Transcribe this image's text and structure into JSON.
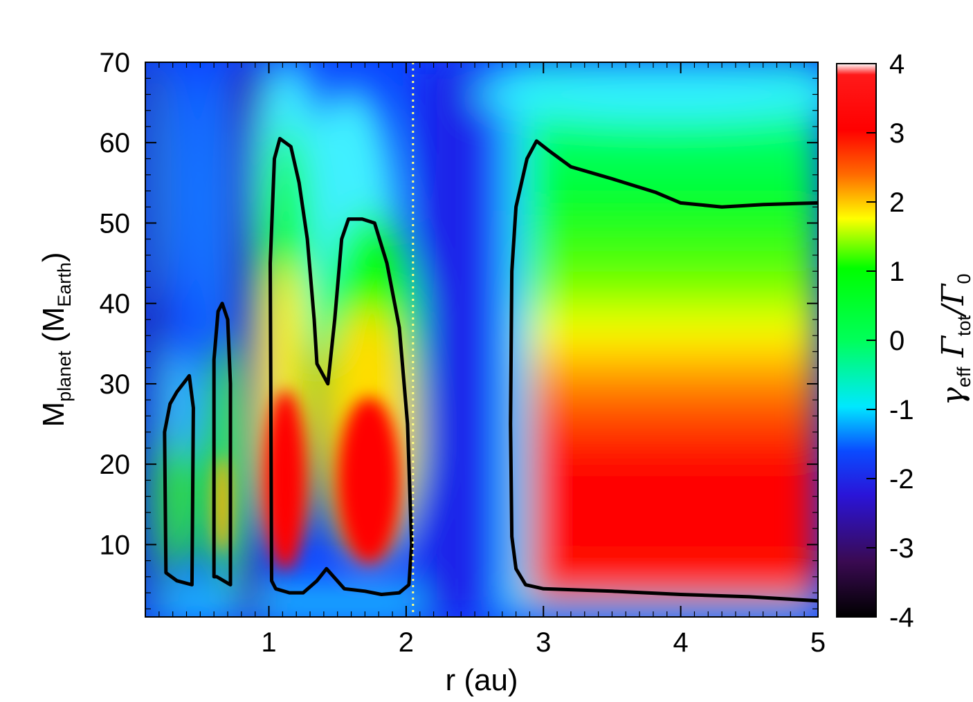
{
  "chart_data": {
    "type": "heatmap",
    "xlabel": "r (au)",
    "ylabel": {
      "base": "M",
      "sub": "planet",
      "unit_open": " (M",
      "unit_sub": "Earth",
      "unit_close": ")"
    },
    "colorbar_label": {
      "gamma": "γ",
      "gamma_sub": "eff",
      "torque": " Γ",
      "torque_sub": "tot",
      "slash": "/Γ",
      "zero_sub": "0"
    },
    "xlim": [
      0.1,
      5
    ],
    "ylim": [
      1,
      70
    ],
    "x_ticks": [
      1,
      2,
      3,
      4,
      5
    ],
    "x_tick_labels": [
      "1",
      "2",
      "3",
      "4",
      "5"
    ],
    "y_ticks": [
      10,
      20,
      30,
      40,
      50,
      60,
      70
    ],
    "y_tick_labels": [
      "10",
      "20",
      "30",
      "40",
      "50",
      "60",
      "70"
    ],
    "colorbar_range": [
      -4,
      4
    ],
    "colorbar_ticks": [
      4,
      3,
      2,
      1,
      0,
      -1,
      -2,
      -3,
      -4
    ],
    "colorbar_tick_labels": [
      "4",
      "3",
      "2",
      "1",
      "0",
      "-1",
      "-2",
      "-3",
      "-4"
    ],
    "colormap": [
      "#000000",
      "#3a0a52",
      "#2a14d8",
      "#0a4bff",
      "#00e8ff",
      "#00ff00",
      "#ffff00",
      "#ff6a00",
      "#ff0000",
      "#ffffff"
    ],
    "reference_line": {
      "x": 2.05,
      "style": "dotted",
      "color": "#ffff80"
    },
    "zero_contours": [
      [
        [
          0.25,
          6.5
        ],
        [
          0.24,
          24
        ],
        [
          0.28,
          27.5
        ],
        [
          0.33,
          29
        ],
        [
          0.42,
          31
        ],
        [
          0.45,
          27
        ],
        [
          0.44,
          5
        ],
        [
          0.33,
          5.5
        ],
        [
          0.25,
          6.5
        ]
      ],
      [
        [
          0.6,
          6
        ],
        [
          0.6,
          33
        ],
        [
          0.63,
          39
        ],
        [
          0.66,
          40
        ],
        [
          0.7,
          38
        ],
        [
          0.72,
          30
        ],
        [
          0.72,
          5
        ],
        [
          0.62,
          6
        ],
        [
          0.6,
          6
        ]
      ],
      [
        [
          1.02,
          5.5
        ],
        [
          1.01,
          45
        ],
        [
          1.04,
          58
        ],
        [
          1.08,
          60.5
        ],
        [
          1.16,
          59.5
        ],
        [
          1.22,
          55
        ],
        [
          1.28,
          48
        ],
        [
          1.33,
          38
        ],
        [
          1.35,
          32.5
        ],
        [
          1.43,
          30
        ],
        [
          1.48,
          38
        ],
        [
          1.53,
          48
        ],
        [
          1.58,
          50.5
        ],
        [
          1.68,
          50.5
        ],
        [
          1.77,
          50
        ],
        [
          1.86,
          45
        ],
        [
          1.95,
          37
        ],
        [
          2.01,
          25
        ],
        [
          2.04,
          10
        ],
        [
          2.02,
          5
        ],
        [
          1.95,
          4
        ],
        [
          1.82,
          3.8
        ],
        [
          1.7,
          4.2
        ],
        [
          1.55,
          4.5
        ],
        [
          1.42,
          7
        ],
        [
          1.35,
          5.5
        ],
        [
          1.25,
          4
        ],
        [
          1.15,
          4
        ],
        [
          1.05,
          4.5
        ],
        [
          1.02,
          5.5
        ]
      ]
    ],
    "outer_zero_boundary": [
      [
        5.0,
        3
      ],
      [
        4.5,
        3.5
      ],
      [
        4.0,
        3.8
      ],
      [
        3.5,
        4.2
      ],
      [
        3.0,
        4.5
      ],
      [
        2.87,
        5
      ],
      [
        2.8,
        7
      ],
      [
        2.77,
        11
      ],
      [
        2.76,
        25
      ],
      [
        2.77,
        44
      ],
      [
        2.8,
        52
      ],
      [
        2.88,
        58
      ],
      [
        2.95,
        60.2
      ],
      [
        3.04,
        59
      ],
      [
        3.2,
        57
      ],
      [
        3.5,
        55.5
      ],
      [
        3.82,
        53.8
      ],
      [
        4.0,
        52.5
      ],
      [
        4.3,
        52
      ],
      [
        4.6,
        52.3
      ],
      [
        5.0,
        52.5
      ]
    ]
  }
}
